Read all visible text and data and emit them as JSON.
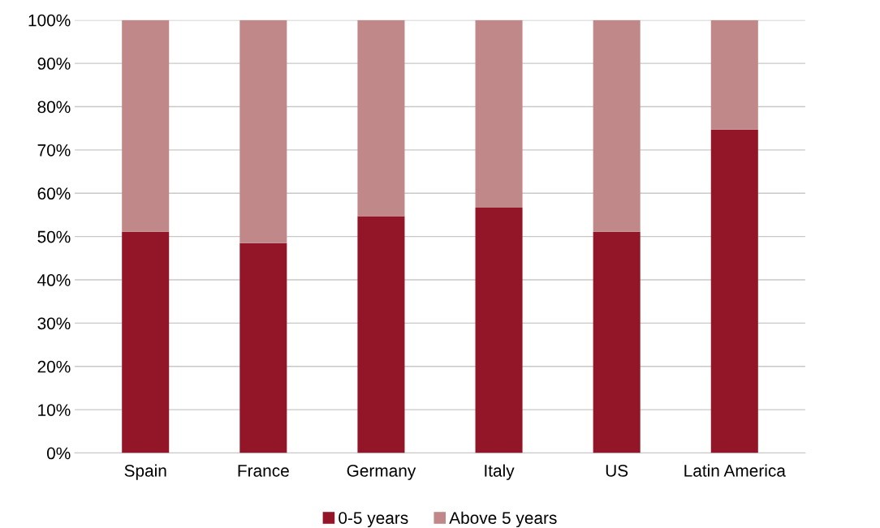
{
  "chart_data": {
    "type": "bar",
    "stacked": true,
    "categories": [
      "Spain",
      "France",
      "Germany",
      "Italy",
      "US",
      "Latin America"
    ],
    "series": [
      {
        "name": "0-5 years",
        "color": "#931628",
        "values": [
          51.1,
          48.5,
          54.7,
          56.7,
          51.1,
          74.7
        ]
      },
      {
        "name": "Above 5 years",
        "color": "#c08888",
        "values": [
          48.9,
          51.5,
          45.3,
          43.3,
          48.9,
          25.3
        ]
      }
    ],
    "ylim": [
      0,
      100
    ],
    "yticks": [
      {
        "value": 0,
        "label": "0%"
      },
      {
        "value": 10,
        "label": "10%"
      },
      {
        "value": 20,
        "label": "20%"
      },
      {
        "value": 30,
        "label": "30%"
      },
      {
        "value": 40,
        "label": "40%"
      },
      {
        "value": 50,
        "label": "50%"
      },
      {
        "value": 60,
        "label": "60%"
      },
      {
        "value": 70,
        "label": "70%"
      },
      {
        "value": 80,
        "label": "80%"
      },
      {
        "value": 90,
        "label": "90%"
      },
      {
        "value": 100,
        "label": "100%"
      }
    ],
    "grid": "y",
    "legend": "bottom"
  }
}
